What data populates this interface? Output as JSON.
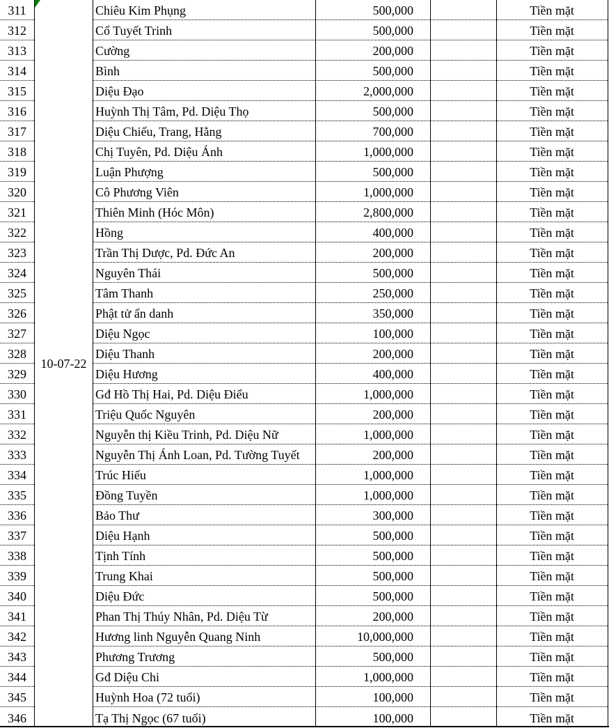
{
  "sheet": {
    "date_group": "10-07-22",
    "colors": {
      "error_indicator_green": "#087c08",
      "grid_line": "#000000",
      "background": "#ffffff"
    },
    "icons": {
      "cell_error_indicator": "green-corner-triangle-icon"
    },
    "table": {
      "column_roles": [
        "row-number",
        "date",
        "donor-name",
        "amount",
        "blank",
        "payment-method"
      ],
      "rows": [
        {
          "no": "311",
          "name": "Chiêu Kim Phụng",
          "amount": "500,000",
          "method": "Tiền mặt"
        },
        {
          "no": "312",
          "name": "Cổ Tuyết Trinh",
          "amount": "500,000",
          "method": "Tiền mặt"
        },
        {
          "no": "313",
          "name": "Cường",
          "amount": "200,000",
          "method": "Tiền mặt"
        },
        {
          "no": "314",
          "name": "Bình",
          "amount": "500,000",
          "method": "Tiền mặt"
        },
        {
          "no": "315",
          "name": "Diệu Đạo",
          "amount": "2,000,000",
          "method": "Tiền mặt"
        },
        {
          "no": "316",
          "name": "Huỳnh Thị Tâm, Pd. Diệu Thọ",
          "amount": "500,000",
          "method": "Tiền mặt"
        },
        {
          "no": "317",
          "name": "Diệu Chiếu, Trang, Hằng",
          "amount": "700,000",
          "method": "Tiền mặt"
        },
        {
          "no": "318",
          "name": "Chị Tuyên, Pd. Diệu Ánh",
          "amount": "1,000,000",
          "method": "Tiền mặt"
        },
        {
          "no": "319",
          "name": "Luận Phượng",
          "amount": "500,000",
          "method": "Tiền mặt"
        },
        {
          "no": "320",
          "name": "Cô Phương Viên",
          "amount": "1,000,000",
          "method": "Tiền mặt"
        },
        {
          "no": "321",
          "name": "Thiên Minh (Hóc Môn)",
          "amount": "2,800,000",
          "method": "Tiền mặt"
        },
        {
          "no": "322",
          "name": "Hồng",
          "amount": "400,000",
          "method": "Tiền mặt"
        },
        {
          "no": "323",
          "name": "Trần Thị Dược, Pd. Đức An",
          "amount": "200,000",
          "method": "Tiền mặt"
        },
        {
          "no": "324",
          "name": "Nguyên Thái",
          "amount": "500,000",
          "method": "Tiền mặt"
        },
        {
          "no": "325",
          "name": "Tâm Thanh",
          "amount": "250,000",
          "method": "Tiền mặt"
        },
        {
          "no": "326",
          "name": "Phật tử ẩn danh",
          "amount": "350,000",
          "method": "Tiền mặt"
        },
        {
          "no": "327",
          "name": "Diệu Ngọc",
          "amount": "100,000",
          "method": "Tiền mặt"
        },
        {
          "no": "328",
          "name": "Diệu Thanh",
          "amount": "200,000",
          "method": "Tiền mặt"
        },
        {
          "no": "329",
          "name": "Diệu Hương",
          "amount": "400,000",
          "method": "Tiền mặt"
        },
        {
          "no": "330",
          "name": "Gđ Hồ Thị Hai, Pd. Diệu Điểu",
          "amount": "1,000,000",
          "method": "Tiền mặt"
        },
        {
          "no": "331",
          "name": "Triệu Quốc Nguyên",
          "amount": "200,000",
          "method": "Tiền mặt"
        },
        {
          "no": "332",
          "name": "Nguyễn thị Kiều Trinh, Pd. Diệu Nữ",
          "amount": "1,000,000",
          "method": "Tiền mặt"
        },
        {
          "no": "333",
          "name": "Nguyễn Thị Ánh Loan, Pd. Tường Tuyết",
          "amount": "200,000",
          "method": "Tiền mặt"
        },
        {
          "no": "334",
          "name": "Trúc Hiếu",
          "amount": "1,000,000",
          "method": "Tiền mặt"
        },
        {
          "no": "335",
          "name": "Đồng Tuyền",
          "amount": "1,000,000",
          "method": "Tiền mặt"
        },
        {
          "no": "336",
          "name": "Bảo Thư",
          "amount": "300,000",
          "method": "Tiền mặt"
        },
        {
          "no": "337",
          "name": "Diệu Hạnh",
          "amount": "500,000",
          "method": "Tiền mặt"
        },
        {
          "no": "338",
          "name": "Tịnh Tính",
          "amount": "500,000",
          "method": "Tiền mặt"
        },
        {
          "no": "339",
          "name": "Trung Khai",
          "amount": "500,000",
          "method": "Tiền mặt"
        },
        {
          "no": "340",
          "name": "Diệu Đức",
          "amount": "500,000",
          "method": "Tiền mặt"
        },
        {
          "no": "341",
          "name": "Phan Thị Thúy Nhân, Pd. Diệu Từ",
          "amount": "200,000",
          "method": "Tiền mặt"
        },
        {
          "no": "342",
          "name": "Hương linh Nguyễn Quang Ninh",
          "amount": "10,000,000",
          "method": "Tiền mặt"
        },
        {
          "no": "343",
          "name": "Phương Trương",
          "amount": "500,000",
          "method": "Tiền mặt"
        },
        {
          "no": "344",
          "name": "Gđ Diệu Chi",
          "amount": "1,000,000",
          "method": "Tiền mặt"
        },
        {
          "no": "345",
          "name": "Huỳnh Hoa (72 tuổi)",
          "amount": "100,000",
          "method": "Tiền mặt"
        },
        {
          "no": "346",
          "name": "Tạ Thị Ngọc (67 tuổi)",
          "amount": "100,000",
          "method": "Tiền mặt"
        }
      ]
    }
  }
}
